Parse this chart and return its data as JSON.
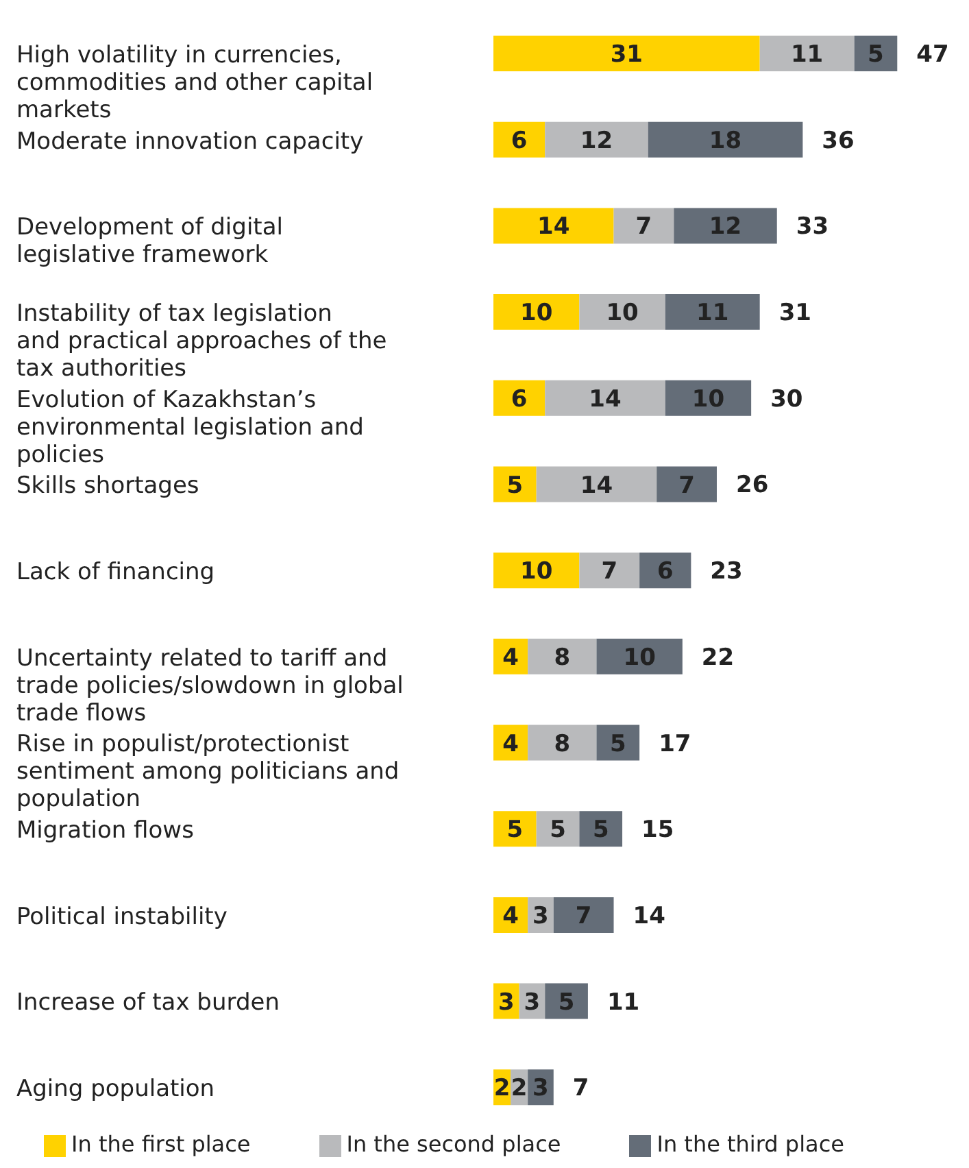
{
  "chart_data": {
    "type": "bar",
    "orientation": "horizontal",
    "stacked": true,
    "data_labels": true,
    "legend": "bottom",
    "categories": [
      "High volatility in currencies, commodities and other capital markets",
      "Moderate innovation capacity",
      "Development of digital legislative framework",
      "Instability of tax legislation and practical approaches of the tax authorities",
      "Evolution of Kazakhstan’s environmental legislation and policies",
      "Skills shortages",
      "Lack of financing",
      "Uncertainty related to tariff and trade policies/slowdown in global trade flows",
      "Rise in populist/protectionist sentiment among politicians and population",
      "Migration flows",
      "Political instability",
      "Increase of tax burden",
      "Aging population"
    ],
    "series": [
      {
        "name": "In the first place",
        "color": "#ffd200",
        "values": [
          31,
          6,
          14,
          10,
          6,
          5,
          10,
          4,
          4,
          5,
          4,
          3,
          2
        ]
      },
      {
        "name": "In the second place",
        "color": "#b9babc",
        "values": [
          11,
          12,
          7,
          10,
          14,
          14,
          7,
          8,
          8,
          5,
          3,
          3,
          2
        ]
      },
      {
        "name": "In the third place",
        "color": "#646d78",
        "values": [
          5,
          18,
          12,
          11,
          10,
          7,
          6,
          10,
          5,
          5,
          7,
          5,
          3
        ]
      }
    ],
    "totals": [
      "47",
      "36",
      "33",
      "31",
      "30",
      "26",
      "23",
      "22",
      "17",
      "15",
      "14",
      "11",
      "7"
    ]
  }
}
